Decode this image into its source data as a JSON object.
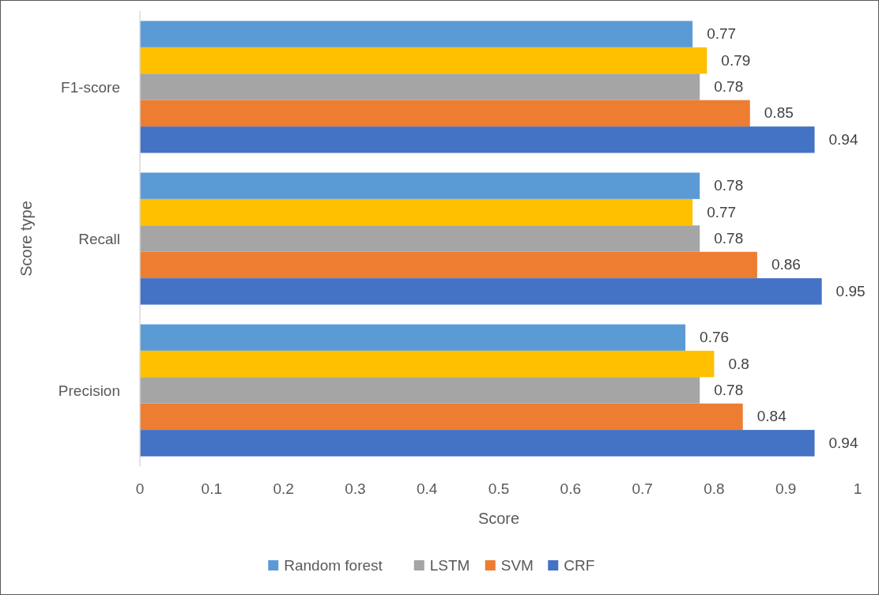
{
  "chart_data": {
    "type": "bar",
    "orientation": "horizontal",
    "xlabel": "Score",
    "ylabel": "Score type",
    "categories": [
      "F1-score",
      "Recall",
      "Precision"
    ],
    "series": [
      {
        "name": "Random forest",
        "color": "#5b9bd5",
        "values": [
          0.77,
          0.78,
          0.76
        ]
      },
      {
        "color": "#ffc000",
        "values": [
          0.79,
          0.77,
          0.8
        ]
      },
      {
        "name": "LSTM",
        "color": "#a5a5a5",
        "values": [
          0.78,
          0.78,
          0.78
        ]
      },
      {
        "name": "SVM",
        "color": "#ed7d31",
        "values": [
          0.85,
          0.86,
          0.84
        ]
      },
      {
        "name": "CRF",
        "color": "#4472c4",
        "values": [
          0.94,
          0.95,
          0.94
        ]
      }
    ],
    "xlim": [
      0,
      1
    ],
    "xticks": [
      0,
      0.1,
      0.2,
      0.3,
      0.4,
      0.5,
      0.6,
      0.7,
      0.8,
      0.9,
      1
    ],
    "data_labels": true,
    "legend": "bottom",
    "grid": false
  }
}
